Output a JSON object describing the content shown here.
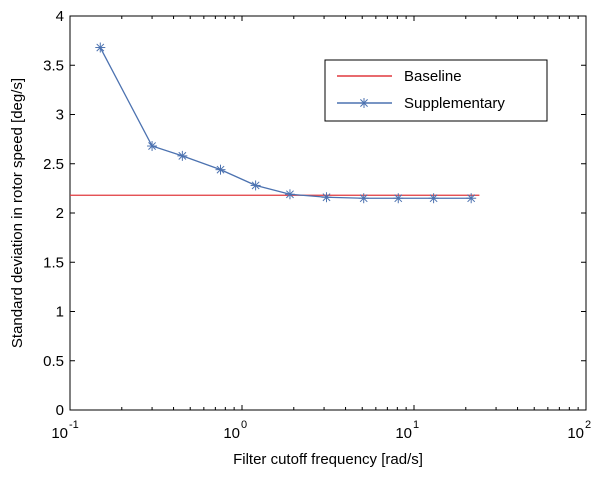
{
  "chart_data": {
    "type": "line",
    "xlabel": "Filter cutoff frequency [rad/s]",
    "ylabel": "Standard deviation in rotor speed [deg/s]",
    "x_scale": "log",
    "xlim": [
      0.1,
      100
    ],
    "ylim": [
      0,
      4
    ],
    "x_ticks": [
      {
        "value": 0.1,
        "base": "10",
        "exp": "-1"
      },
      {
        "value": 1,
        "base": "10",
        "exp": "0"
      },
      {
        "value": 10,
        "base": "10",
        "exp": "1"
      },
      {
        "value": 100,
        "base": "10",
        "exp": "2"
      }
    ],
    "y_ticks": [
      "0",
      "0.5",
      "1",
      "1.5",
      "2",
      "2.5",
      "3",
      "3.5",
      "4"
    ],
    "grid": false,
    "legend_position": "top-right",
    "series": [
      {
        "name": "Baseline",
        "color": "#e0393e",
        "marker": "none",
        "x": [
          0.1,
          24
        ],
        "y": [
          2.18,
          2.18
        ]
      },
      {
        "name": "Supplementary",
        "color": "#4c72b0",
        "marker": "asterisk",
        "x": [
          0.15,
          0.3,
          0.45,
          0.75,
          1.2,
          1.9,
          3.1,
          5.1,
          8.1,
          13,
          21.5
        ],
        "y": [
          3.68,
          2.68,
          2.58,
          2.44,
          2.28,
          2.19,
          2.16,
          2.15,
          2.15,
          2.15,
          2.15
        ]
      }
    ]
  }
}
